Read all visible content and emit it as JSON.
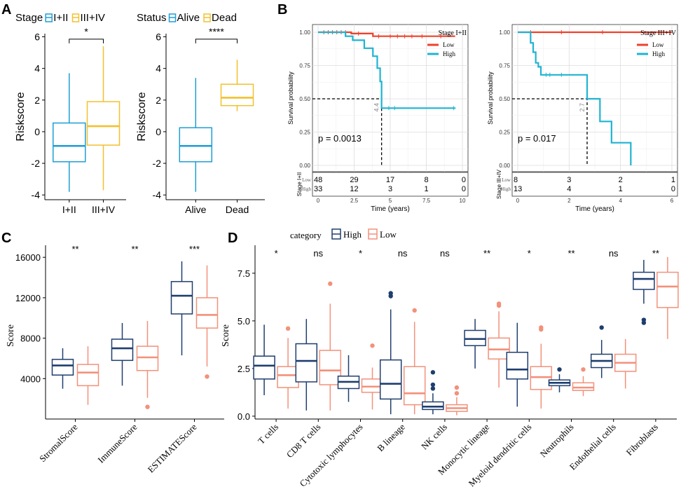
{
  "panels": {
    "a": "A",
    "b": "B",
    "c": "C",
    "d": "D"
  },
  "colors": {
    "stage_early": "#1e9ed6",
    "stage_late": "#f2c12e",
    "km_low": "#f0412a",
    "km_high": "#1fb4d2",
    "cat_high": "#1f3e6f",
    "cat_low": "#f3917a"
  },
  "chart_data": [
    {
      "id": "A1",
      "type": "box",
      "legend_title": "Stage",
      "legend": [
        "I+II",
        "III+IV"
      ],
      "ylabel": "Riskscore",
      "ylim": [
        -4.3,
        6.2
      ],
      "yticks": [
        -4,
        -2,
        0,
        2,
        4,
        6
      ],
      "categories": [
        "I+II",
        "III+IV"
      ],
      "boxes": [
        {
          "min": -3.8,
          "q1": -1.9,
          "median": -0.9,
          "q3": 0.55,
          "max": 3.7
        },
        {
          "min": -3.7,
          "q1": -0.85,
          "median": 0.35,
          "q3": 1.9,
          "max": 5.4
        }
      ],
      "signif": "*"
    },
    {
      "id": "A2",
      "type": "box",
      "legend_title": "Status",
      "legend": [
        "Alive",
        "Dead"
      ],
      "ylabel": "Riskscore",
      "ylim": [
        -4.3,
        6.2
      ],
      "yticks": [
        -4,
        -2,
        0,
        2,
        4,
        6
      ],
      "categories": [
        "Alive",
        "Dead"
      ],
      "boxes": [
        {
          "min": -3.8,
          "q1": -1.9,
          "median": -0.9,
          "q3": 0.25,
          "max": 3.4
        },
        {
          "min": 1.3,
          "q1": 1.65,
          "median": 2.15,
          "q3": 3.0,
          "max": 4.55
        }
      ],
      "signif": "****"
    },
    {
      "id": "B1",
      "type": "line",
      "subtype": "kaplan-meier",
      "legend_title": "Stage I+II",
      "legend": [
        "Low",
        "High"
      ],
      "ylabel": "Survival probability",
      "xlabel": "Time (years)",
      "xlim": [
        0,
        10
      ],
      "xticks": [
        "0",
        "2.5",
        "5",
        "7.5",
        "10"
      ],
      "ylim": [
        0,
        1
      ],
      "yticks": [
        "0.00",
        "0.25",
        "0.50",
        "0.75",
        "1.00"
      ],
      "pvalue": "p = 0.0013",
      "median_label": "4.4",
      "median_time": 4.4,
      "series": [
        {
          "name": "Low",
          "x": [
            0,
            2.3,
            2.3,
            3.8,
            3.8,
            9.5
          ],
          "y": [
            1,
            1,
            0.99,
            0.99,
            0.97,
            0.97
          ],
          "censor": [
            [
              0.4,
              1
            ],
            [
              0.7,
              1
            ],
            [
              1,
              1
            ],
            [
              1.3,
              1
            ],
            [
              1.6,
              1
            ],
            [
              1.9,
              1
            ],
            [
              2.8,
              0.99
            ],
            [
              4.2,
              0.97
            ],
            [
              5.0,
              0.97
            ],
            [
              5.5,
              0.97
            ],
            [
              6.0,
              0.97
            ],
            [
              6.5,
              0.97
            ],
            [
              7.2,
              0.97
            ],
            [
              8.5,
              0.97
            ]
          ]
        },
        {
          "name": "High",
          "x": [
            0,
            1.9,
            1.9,
            2.4,
            2.4,
            3.2,
            3.2,
            3.8,
            3.8,
            4.1,
            4.1,
            4.3,
            4.3,
            4.4,
            4.4,
            9.5
          ],
          "y": [
            1,
            1,
            0.97,
            0.97,
            0.94,
            0.94,
            0.88,
            0.88,
            0.82,
            0.82,
            0.73,
            0.73,
            0.63,
            0.63,
            0.43,
            0.43
          ],
          "censor": [
            [
              4.9,
              0.43
            ],
            [
              5.3,
              0.43
            ],
            [
              9.4,
              0.43
            ]
          ]
        }
      ],
      "risk_table": {
        "label": "Stage I+II",
        "rows": [
          "Low",
          "High"
        ],
        "values": [
          [
            "48",
            "29",
            "17",
            "8",
            "0"
          ],
          [
            "33",
            "12",
            "3",
            "1",
            "0"
          ]
        ]
      }
    },
    {
      "id": "B2",
      "type": "line",
      "subtype": "kaplan-meier",
      "legend_title": "Stage III+IV",
      "legend": [
        "Low",
        "High"
      ],
      "ylabel": "Survival probability",
      "xlabel": "Time (years)",
      "xlim": [
        0,
        6
      ],
      "xticks": [
        "0",
        "2",
        "4",
        "6"
      ],
      "ylim": [
        0,
        1
      ],
      "yticks": [
        "0.00",
        "0.25",
        "0.50",
        "0.75",
        "1.00"
      ],
      "pvalue": "p = 0.017",
      "median_label": "2.7",
      "median_time": 2.7,
      "series": [
        {
          "name": "Low",
          "x": [
            0,
            6
          ],
          "y": [
            1,
            1
          ],
          "censor": [
            [
              0.5,
              1
            ],
            [
              1.7,
              1
            ],
            [
              3.3,
              1
            ],
            [
              5.5,
              1
            ]
          ]
        },
        {
          "name": "High",
          "x": [
            0,
            0.5,
            0.5,
            0.6,
            0.6,
            0.7,
            0.7,
            0.8,
            0.8,
            0.9,
            0.9,
            2.7,
            2.7,
            3.2,
            3.2,
            3.65,
            3.65,
            4.4,
            4.4
          ],
          "y": [
            1,
            1,
            0.92,
            0.92,
            0.85,
            0.85,
            0.77,
            0.77,
            0.74,
            0.74,
            0.68,
            0.68,
            0.5,
            0.5,
            0.33,
            0.33,
            0.17,
            0.17,
            0
          ],
          "censor": [
            [
              1.1,
              0.68
            ],
            [
              1.25,
              0.68
            ],
            [
              1.7,
              0.68
            ]
          ]
        }
      ],
      "risk_table": {
        "label": "Stage III+IV",
        "rows": [
          "Low",
          "High"
        ],
        "values": [
          [
            "8",
            "3",
            "2",
            "1"
          ],
          [
            "13",
            "4",
            "1",
            "0"
          ]
        ]
      }
    },
    {
      "id": "C",
      "type": "box",
      "legend": [
        "High",
        "Low"
      ],
      "ylabel": "Score",
      "ylim": [
        0,
        16500
      ],
      "yticks": [
        4000,
        8000,
        12000,
        16000
      ],
      "categories": [
        "StromalScore",
        "ImmuneScore",
        "ESTIMATEScore"
      ],
      "signif": [
        "**",
        "**",
        "***"
      ],
      "groups": [
        {
          "High": {
            "min": 3000,
            "q1": 4350,
            "median": 5300,
            "q3": 5900,
            "max": 7000,
            "outliers": []
          },
          "Low": {
            "min": 1400,
            "q1": 3300,
            "median": 4600,
            "q3": 5400,
            "max": 7200,
            "outliers": []
          }
        },
        {
          "High": {
            "min": 3300,
            "q1": 5800,
            "median": 7000,
            "q3": 7900,
            "max": 9500,
            "outliers": []
          },
          "Low": {
            "min": 2100,
            "q1": 4800,
            "median": 6100,
            "q3": 7200,
            "max": 9700,
            "outliers": [
              1200
            ]
          }
        },
        {
          "High": {
            "min": 6300,
            "q1": 10400,
            "median": 12200,
            "q3": 13600,
            "max": 15600,
            "outliers": []
          },
          "Low": {
            "min": 5200,
            "q1": 9000,
            "median": 10300,
            "q3": 12000,
            "max": 15200,
            "outliers": [
              4200
            ]
          }
        }
      ]
    },
    {
      "id": "D",
      "type": "box",
      "legend_title": "category",
      "legend": [
        "High",
        "Low"
      ],
      "ylabel": "Score",
      "ylim": [
        -0.15,
        8.6
      ],
      "yticks": [
        "0.0",
        "2.5",
        "5.0",
        "7.5"
      ],
      "categories": [
        "T cells",
        "CD8 T cells",
        "Cytotoxic lymphocytes",
        "B lineage",
        "NK cells",
        "Monocytic lineage",
        "Myeloid dendritic cells",
        "Neutrophils",
        "Endothelial cells",
        "Fibroblasts"
      ],
      "signif": [
        "*",
        "ns",
        "*",
        "ns",
        "ns",
        "**",
        "*",
        "**",
        "ns",
        "**"
      ],
      "groups": [
        {
          "High": {
            "min": 1.1,
            "q1": 1.95,
            "median": 2.65,
            "q3": 3.15,
            "max": 4.8,
            "outliers": []
          },
          "Low": {
            "min": 0.4,
            "q1": 1.5,
            "median": 2.15,
            "q3": 2.6,
            "max": 4.1,
            "outliers": [
              4.6
            ]
          }
        },
        {
          "High": {
            "min": 0.3,
            "q1": 1.8,
            "median": 2.9,
            "q3": 3.8,
            "max": 5.1,
            "outliers": []
          },
          "Low": {
            "min": 0.3,
            "q1": 1.65,
            "median": 2.4,
            "q3": 3.45,
            "max": 5.9,
            "outliers": [
              6.95
            ]
          }
        },
        {
          "High": {
            "min": 0.75,
            "q1": 1.45,
            "median": 1.8,
            "q3": 2.1,
            "max": 3.2,
            "outliers": []
          },
          "Low": {
            "min": 0.35,
            "q1": 1.25,
            "median": 1.55,
            "q3": 1.95,
            "max": 2.55,
            "outliers": [
              3.7
            ]
          }
        },
        {
          "High": {
            "min": 0.1,
            "q1": 0.9,
            "median": 1.7,
            "q3": 2.95,
            "max": 5.6,
            "outliers": [
              6.3,
              6.45
            ]
          },
          "Low": {
            "min": 0.1,
            "q1": 0.6,
            "median": 1.2,
            "q3": 2.6,
            "max": 4.95,
            "outliers": [
              5.55
            ]
          }
        },
        {
          "High": {
            "min": 0.1,
            "q1": 0.35,
            "median": 0.5,
            "q3": 0.75,
            "max": 1.2,
            "outliers": [
              1.45,
              1.65,
              2.3
            ]
          },
          "Low": {
            "min": 0.05,
            "q1": 0.25,
            "median": 0.42,
            "q3": 0.6,
            "max": 1.0,
            "outliers": [
              1.2,
              1.5
            ]
          }
        },
        {
          "High": {
            "min": 2.5,
            "q1": 3.7,
            "median": 4.05,
            "q3": 4.5,
            "max": 5.1,
            "outliers": []
          },
          "Low": {
            "min": 1.5,
            "q1": 3.0,
            "median": 3.5,
            "q3": 4.1,
            "max": 5.5,
            "outliers": [
              5.8,
              5.9
            ]
          }
        },
        {
          "High": {
            "min": 0.5,
            "q1": 1.95,
            "median": 2.45,
            "q3": 3.35,
            "max": 4.9,
            "outliers": []
          },
          "Low": {
            "min": 0.4,
            "q1": 1.4,
            "median": 2.05,
            "q3": 2.6,
            "max": 3.8,
            "outliers": [
              4.55,
              4.65
            ]
          }
        },
        {
          "High": {
            "min": 1.25,
            "q1": 1.6,
            "median": 1.75,
            "q3": 1.9,
            "max": 2.2,
            "outliers": [
              2.45
            ]
          },
          "Low": {
            "min": 1.05,
            "q1": 1.35,
            "median": 1.5,
            "q3": 1.75,
            "max": 2.1,
            "outliers": [
              2.45
            ]
          }
        },
        {
          "High": {
            "min": 2.0,
            "q1": 2.55,
            "median": 2.9,
            "q3": 3.25,
            "max": 4.0,
            "outliers": [
              4.65
            ]
          },
          "Low": {
            "min": 1.45,
            "q1": 2.35,
            "median": 2.8,
            "q3": 3.25,
            "max": 4.05,
            "outliers": []
          }
        },
        {
          "High": {
            "min": 5.9,
            "q1": 6.65,
            "median": 7.2,
            "q3": 7.55,
            "max": 8.2,
            "outliers": [
              4.9,
              5.05
            ]
          },
          "Low": {
            "min": 4.05,
            "q1": 5.7,
            "median": 6.8,
            "q3": 7.55,
            "max": 8.35,
            "outliers": []
          }
        }
      ]
    }
  ]
}
